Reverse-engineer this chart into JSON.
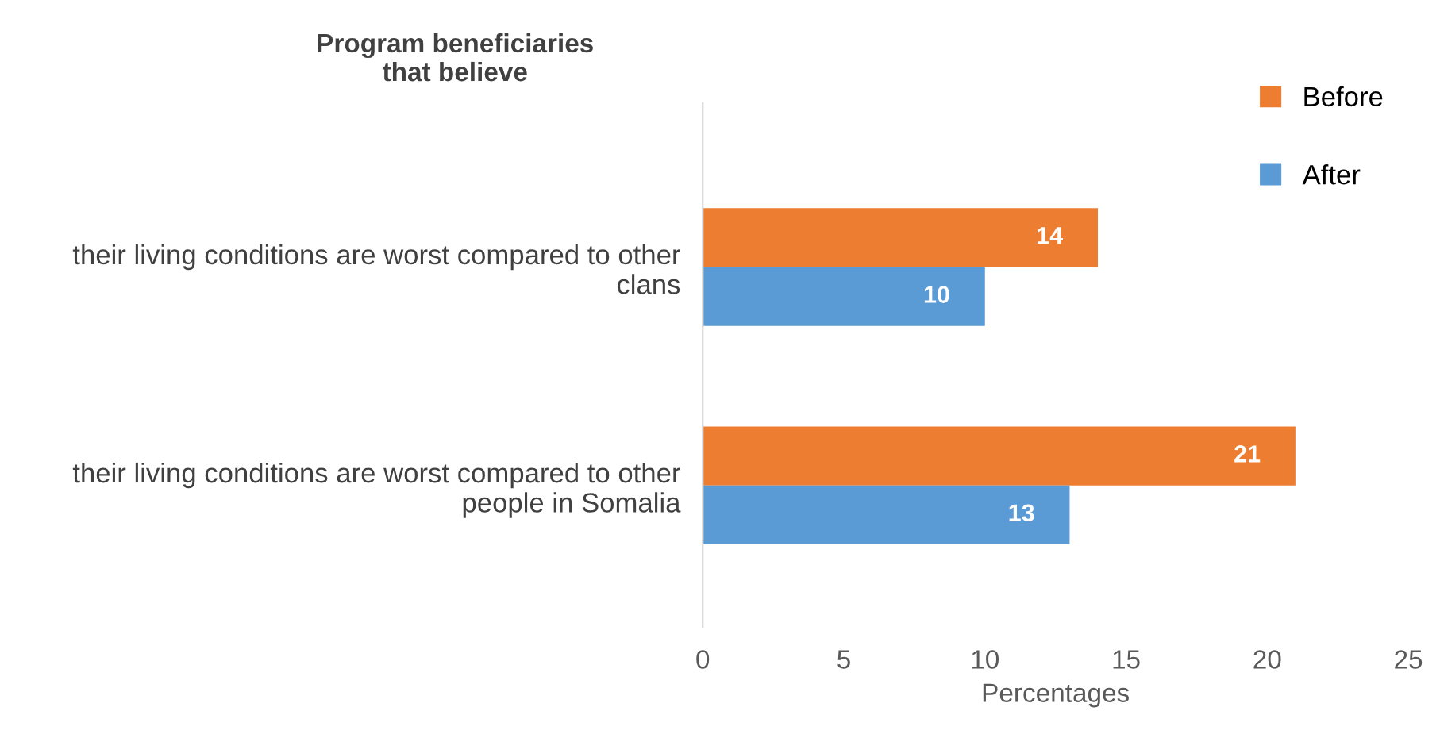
{
  "chart_data": {
    "type": "bar",
    "orientation": "horizontal",
    "title": "Program beneficiaries\nthat believe",
    "categories": [
      "their living conditions are worst compared to other clans",
      "their living conditions are worst compared to other people in Somalia"
    ],
    "series": [
      {
        "name": "Before",
        "color": "#ed7d31",
        "values": [
          14,
          21
        ]
      },
      {
        "name": "After",
        "color": "#5b9bd5",
        "values": [
          10,
          13
        ]
      }
    ],
    "xlabel": "Percentages",
    "xlim": [
      0,
      25
    ],
    "xticks": [
      0,
      5,
      10,
      15,
      20,
      25
    ],
    "grid": false,
    "legend": "top right",
    "data_labels": true
  }
}
